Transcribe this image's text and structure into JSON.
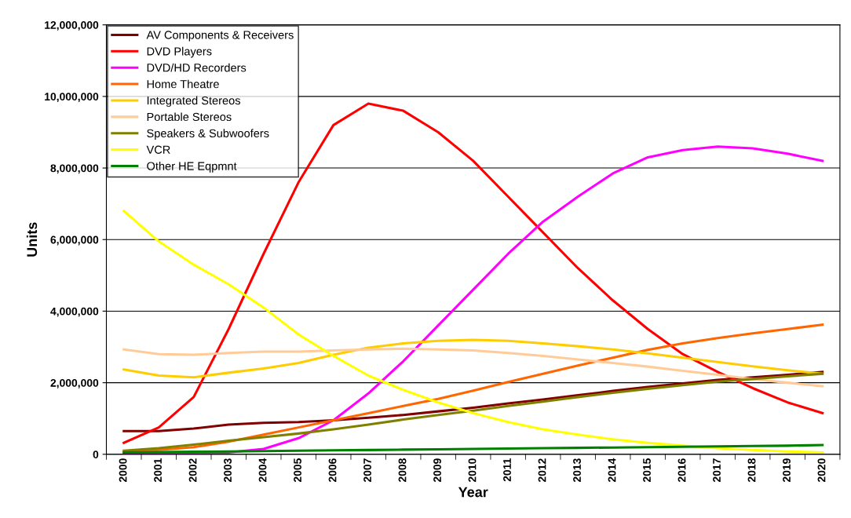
{
  "chart_data": {
    "type": "line",
    "xlabel": "Year",
    "ylabel": "Units",
    "categories": [
      "2000",
      "2001",
      "2002",
      "2003",
      "2004",
      "2005",
      "2006",
      "2007",
      "2008",
      "2009",
      "2010",
      "2011",
      "2012",
      "2013",
      "2014",
      "2015",
      "2016",
      "2017",
      "2018",
      "2019",
      "2020"
    ],
    "series": [
      {
        "name": "AV Components & Receivers",
        "color": "#800000",
        "values": [
          650000,
          650000,
          720000,
          830000,
          880000,
          900000,
          950000,
          1020000,
          1100000,
          1200000,
          1300000,
          1420000,
          1530000,
          1650000,
          1770000,
          1880000,
          1980000,
          2080000,
          2150000,
          2220000,
          2300000
        ]
      },
      {
        "name": "DVD Players",
        "color": "#ff0000",
        "values": [
          320000,
          750000,
          1600000,
          3500000,
          5600000,
          7600000,
          9200000,
          9800000,
          9600000,
          9000000,
          8200000,
          7200000,
          6200000,
          5200000,
          4300000,
          3500000,
          2800000,
          2300000,
          1850000,
          1450000,
          1150000
        ]
      },
      {
        "name": "DVD/HD Recorders",
        "color": "#ff00ff",
        "values": [
          20000,
          20000,
          30000,
          50000,
          150000,
          450000,
          950000,
          1700000,
          2600000,
          3600000,
          4600000,
          5600000,
          6500000,
          7200000,
          7850000,
          8300000,
          8500000,
          8600000,
          8550000,
          8400000,
          8200000
        ]
      },
      {
        "name": "Home Theatre",
        "color": "#ff6600",
        "values": [
          50000,
          120000,
          200000,
          350000,
          550000,
          750000,
          950000,
          1150000,
          1350000,
          1550000,
          1780000,
          2020000,
          2250000,
          2480000,
          2700000,
          2920000,
          3100000,
          3250000,
          3380000,
          3500000,
          3620000
        ]
      },
      {
        "name": "Integrated Stereos",
        "color": "#ffcc00",
        "values": [
          2370000,
          2200000,
          2150000,
          2280000,
          2400000,
          2550000,
          2780000,
          2980000,
          3100000,
          3170000,
          3200000,
          3170000,
          3100000,
          3020000,
          2930000,
          2820000,
          2700000,
          2580000,
          2460000,
          2350000,
          2250000
        ]
      },
      {
        "name": "Portable Stereos",
        "color": "#ffcc99",
        "values": [
          2930000,
          2800000,
          2780000,
          2830000,
          2870000,
          2870000,
          2900000,
          2930000,
          2950000,
          2930000,
          2900000,
          2830000,
          2750000,
          2650000,
          2550000,
          2450000,
          2330000,
          2220000,
          2100000,
          2000000,
          1900000
        ]
      },
      {
        "name": "Speakers & Subwoofers",
        "color": "#808000",
        "values": [
          100000,
          170000,
          270000,
          380000,
          480000,
          580000,
          700000,
          830000,
          970000,
          1100000,
          1220000,
          1350000,
          1470000,
          1600000,
          1720000,
          1830000,
          1930000,
          2030000,
          2100000,
          2180000,
          2250000
        ]
      },
      {
        "name": "VCR",
        "color": "#ffff00",
        "values": [
          6800000,
          5950000,
          5300000,
          4750000,
          4100000,
          3350000,
          2750000,
          2200000,
          1800000,
          1450000,
          1150000,
          900000,
          700000,
          550000,
          420000,
          320000,
          240000,
          170000,
          120000,
          80000,
          50000
        ]
      },
      {
        "name": "Other HE Eqpmnt",
        "color": "#008000",
        "values": [
          50000,
          60000,
          70000,
          80000,
          90000,
          100000,
          110000,
          120000,
          130000,
          140000,
          150000,
          160000,
          170000,
          180000,
          190000,
          200000,
          210000,
          220000,
          230000,
          240000,
          260000
        ]
      }
    ],
    "ylim": [
      0,
      12000000
    ],
    "yticks": [
      {
        "value": 0,
        "label": "0"
      },
      {
        "value": 2000000,
        "label": "2,000,000"
      },
      {
        "value": 4000000,
        "label": "4,000,000"
      },
      {
        "value": 6000000,
        "label": "6,000,000"
      },
      {
        "value": 8000000,
        "label": "8,000,000"
      },
      {
        "value": 10000000,
        "label": "10,000,000"
      },
      {
        "value": 12000000,
        "label": "12,000,000"
      }
    ],
    "grid": "y",
    "legend": "top left",
    "marker": "none",
    "line_style": "solid"
  }
}
